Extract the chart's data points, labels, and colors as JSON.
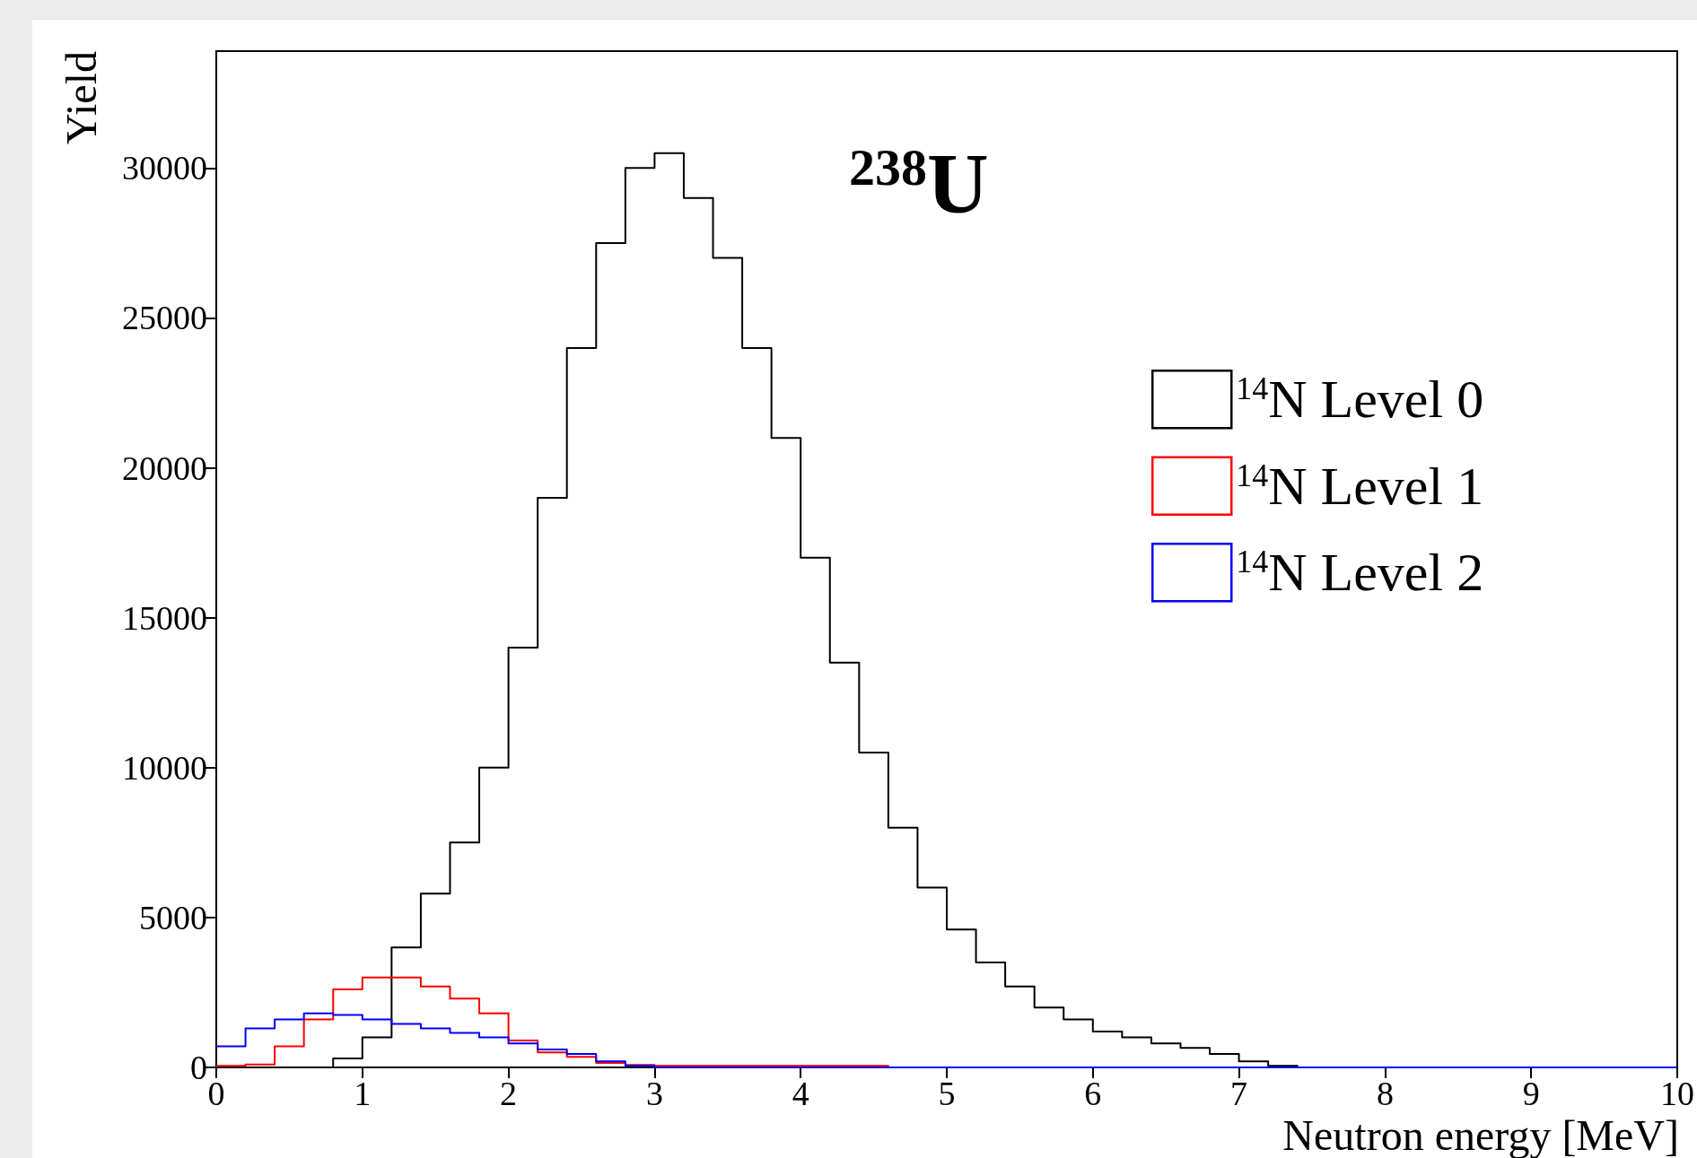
{
  "chart_data": {
    "type": "histogram",
    "title": "$^{238}$U",
    "xlabel": "Neutron energy [MeV]",
    "ylabel": "Yield",
    "bins": [
      0,
      0.2,
      0.4,
      0.6,
      0.8,
      1.0,
      1.2,
      1.4,
      1.6,
      1.8,
      2.0,
      2.2,
      2.4,
      2.6,
      2.8,
      3.0,
      3.2,
      3.4,
      3.6,
      3.8,
      4.0,
      4.2,
      4.4,
      4.6,
      4.8,
      5.0,
      5.2,
      5.4,
      5.6,
      5.8,
      6.0,
      6.2,
      6.4,
      6.6,
      6.8,
      7.0,
      7.2,
      7.4,
      7.6,
      7.8,
      8.0,
      8.2,
      8.4,
      8.6,
      8.8,
      9.0,
      9.2,
      9.4,
      9.6,
      9.8,
      10.0
    ],
    "series": [
      {
        "name": "$^{14}$N Level 0",
        "color": "#000000",
        "values": [
          0,
          0,
          0,
          0,
          300,
          1000,
          4000,
          5800,
          7500,
          10000,
          14000,
          19000,
          24000,
          27500,
          30000,
          30500,
          29000,
          27000,
          24000,
          21000,
          17000,
          13500,
          10500,
          8000,
          6000,
          4600,
          3500,
          2700,
          2000,
          1600,
          1200,
          1000,
          800,
          650,
          450,
          200,
          50,
          0,
          0,
          0,
          0,
          0,
          0,
          0,
          0,
          0,
          0,
          0,
          0,
          0
        ]
      },
      {
        "name": "$^{14}$N Level 1",
        "color": "#ff0000",
        "values": [
          50,
          100,
          700,
          1600,
          2600,
          3000,
          3000,
          2700,
          2300,
          1800,
          900,
          500,
          350,
          150,
          80,
          50,
          50,
          50,
          50,
          50,
          50,
          50,
          50,
          0,
          0,
          0,
          0,
          0,
          0,
          0,
          0,
          0,
          0,
          0,
          0,
          0,
          0,
          0,
          0,
          0,
          0,
          0,
          0,
          0,
          0,
          0,
          0,
          0,
          0,
          0
        ]
      },
      {
        "name": "$^{14}$N Level 2",
        "color": "#0000ff",
        "values": [
          700,
          1300,
          1600,
          1800,
          1750,
          1600,
          1450,
          1300,
          1150,
          1000,
          800,
          600,
          450,
          200,
          50,
          0,
          0,
          0,
          0,
          0,
          0,
          0,
          0,
          0,
          0,
          0,
          0,
          0,
          0,
          0,
          0,
          0,
          0,
          0,
          0,
          0,
          0,
          0,
          0,
          0,
          0,
          0,
          0,
          0,
          0,
          0,
          0,
          0,
          0,
          0
        ]
      }
    ],
    "xlim": [
      0,
      10
    ],
    "xticks": [
      0,
      1,
      2,
      3,
      4,
      5,
      6,
      7,
      8,
      9,
      10
    ],
    "ylim": [
      0,
      33900
    ],
    "yticks": [
      0,
      5000,
      10000,
      15000,
      20000,
      25000,
      30000
    ],
    "legend": "top right",
    "grid": false
  }
}
